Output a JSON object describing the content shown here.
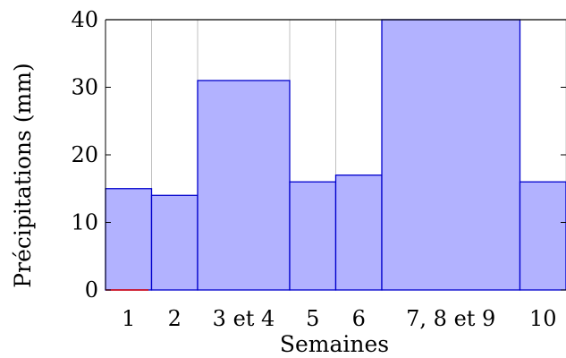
{
  "chart_data": {
    "type": "bar",
    "xlabel": "Semaines",
    "ylabel": "Précipitations (mm)",
    "ylim": [
      0,
      40
    ],
    "xlim": [
      0,
      10
    ],
    "yticks": [
      0,
      10,
      20,
      30,
      40
    ],
    "grid": "vertical at bin boundaries",
    "bars": [
      {
        "label": "1",
        "x_start": 0,
        "x_end": 1,
        "value": 15
      },
      {
        "label": "2",
        "x_start": 1,
        "x_end": 2,
        "value": 14
      },
      {
        "label": "3 et 4",
        "x_start": 2,
        "x_end": 4,
        "value": 31
      },
      {
        "label": "5",
        "x_start": 4,
        "x_end": 5,
        "value": 16
      },
      {
        "label": "6",
        "x_start": 5,
        "x_end": 6,
        "value": 17
      },
      {
        "label": "7, 8 et 9",
        "x_start": 6,
        "x_end": 9,
        "value": 40
      },
      {
        "label": "10",
        "x_start": 9,
        "x_end": 10,
        "value": 16
      }
    ],
    "colors": {
      "bar_fill": "#b2b2ff",
      "bar_stroke": "#0000cc",
      "grid": "#c0c0c0",
      "axis": "#000000",
      "baseline_marker": "#dd0000"
    }
  }
}
